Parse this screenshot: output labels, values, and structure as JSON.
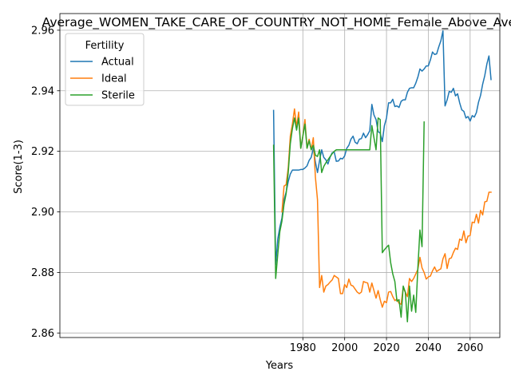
{
  "chart_data": {
    "type": "line",
    "title": "Average_WOMEN_TAKE_CARE_OF_COUNTRY_NOT_HOME_Female_Above_Average",
    "xlabel": "Years",
    "ylabel": "Score(1-3)",
    "xlim": [
      1863.8,
      2074.2
    ],
    "ylim": [
      2.8585,
      2.9655
    ],
    "xticks": [
      1980,
      2000,
      2020,
      2040,
      2060
    ],
    "yticks": [
      2.86,
      2.88,
      2.9,
      2.92,
      2.94,
      2.96
    ],
    "ytick_labels": [
      "2.86",
      "2.88",
      "2.90",
      "2.92",
      "2.94",
      "2.96"
    ],
    "grid": true,
    "legend": {
      "title": "Fertility",
      "placement": "upper-left"
    },
    "series": [
      {
        "name": "Actual",
        "color": "#1f77b4",
        "x": [
          1966,
          1967,
          1968,
          1969,
          1970,
          1971,
          1972,
          1973,
          1974,
          1975,
          1976,
          1977,
          1978,
          1979,
          1980,
          1981,
          1982,
          1983,
          1984,
          1985,
          1986,
          1987,
          1988,
          1989,
          1990,
          1991,
          1992,
          1993,
          1994,
          1995,
          1996,
          1997,
          1998,
          1999,
          2000,
          2001,
          2002,
          2003,
          2004,
          2005,
          2006,
          2007,
          2008,
          2009,
          2010,
          2011,
          2012,
          2013,
          2014,
          2015,
          2016,
          2017,
          2018,
          2019,
          2020,
          2021,
          2022,
          2023,
          2024,
          2025,
          2026,
          2027,
          2028,
          2029,
          2030,
          2031,
          2032,
          2033,
          2034,
          2035,
          2036,
          2037,
          2038,
          2039,
          2040,
          2041,
          2042,
          2043,
          2044,
          2045,
          2046,
          2047,
          2048,
          2049,
          2050,
          2051,
          2052,
          2053,
          2054,
          2055,
          2056,
          2057,
          2058,
          2059,
          2060,
          2061,
          2062,
          2063,
          2064,
          2065,
          2066,
          2067,
          2068,
          2069,
          2070
        ],
        "values": [
          2.9335,
          2.8825,
          2.891,
          2.895,
          2.898,
          2.904,
          2.9065,
          2.91,
          2.9125,
          2.9138,
          2.9138,
          2.9138,
          2.9138,
          2.914,
          2.914,
          2.9145,
          2.9152,
          2.917,
          2.918,
          2.921,
          2.9165,
          2.913,
          2.917,
          2.9205,
          2.918,
          2.9172,
          2.9158,
          2.918,
          2.9195,
          2.9198,
          2.9167,
          2.9168,
          2.9177,
          2.9175,
          2.9185,
          2.921,
          2.922,
          2.924,
          2.925,
          2.923,
          2.9225,
          2.924,
          2.9242,
          2.926,
          2.9245,
          2.9255,
          2.9268,
          2.9355,
          2.932,
          2.9305,
          2.9265,
          2.926,
          2.9232,
          2.9285,
          2.931,
          2.936,
          2.936,
          2.9372,
          2.9348,
          2.935,
          2.9345,
          2.9365,
          2.937,
          2.937,
          2.9395,
          2.9408,
          2.941,
          2.941,
          2.9425,
          2.9445,
          2.9472,
          2.9465,
          2.9472,
          2.9482,
          2.9482,
          2.9502,
          2.9528,
          2.952,
          2.9522,
          2.9545,
          2.9565,
          2.9598,
          2.935,
          2.937,
          2.9398,
          2.9395,
          2.9408,
          2.9383,
          2.939,
          2.936,
          2.9337,
          2.9332,
          2.931,
          2.9315,
          2.93,
          2.9318,
          2.9313,
          2.9328,
          2.9362,
          2.9385,
          2.9422,
          2.945,
          2.9488,
          2.9515,
          2.9437
        ]
      },
      {
        "name": "Ideal",
        "color": "#ff7f0e",
        "x": [
          1970,
          1971,
          1972,
          1973,
          1974,
          1975,
          1976,
          1977,
          1978,
          1979,
          1980,
          1981,
          1982,
          1983,
          1984,
          1985,
          1986,
          1987,
          1988,
          1989,
          1990,
          1991,
          1992,
          1993,
          1994,
          1995,
          1996,
          1997,
          1998,
          1999,
          2000,
          2001,
          2002,
          2003,
          2004,
          2005,
          2006,
          2007,
          2008,
          2009,
          2010,
          2011,
          2012,
          2013,
          2014,
          2015,
          2016,
          2017,
          2018,
          2019,
          2020,
          2021,
          2022,
          2023,
          2024,
          2025,
          2026,
          2027,
          2028,
          2029,
          2030,
          2031,
          2032,
          2033,
          2034,
          2035,
          2036,
          2037,
          2038,
          2039,
          2040,
          2041,
          2042,
          2043,
          2044,
          2045,
          2046,
          2047,
          2048,
          2049,
          2050,
          2051,
          2052,
          2053,
          2054,
          2055,
          2056,
          2057,
          2058,
          2059,
          2060,
          2061,
          2062,
          2063,
          2064,
          2065,
          2066,
          2067,
          2068,
          2069,
          2070
        ],
        "values": [
          2.9,
          2.9085,
          2.909,
          2.9145,
          2.925,
          2.929,
          2.934,
          2.928,
          2.933,
          2.921,
          2.925,
          2.9305,
          2.921,
          2.924,
          2.9205,
          2.9245,
          2.9115,
          2.904,
          2.875,
          2.879,
          2.8735,
          2.8755,
          2.876,
          2.8768,
          2.8775,
          2.879,
          2.8785,
          2.878,
          2.873,
          2.873,
          2.876,
          2.875,
          2.8778,
          2.8758,
          2.8755,
          2.8745,
          2.8735,
          2.873,
          2.8735,
          2.877,
          2.8767,
          2.8765,
          2.8735,
          2.8765,
          2.874,
          2.8715,
          2.874,
          2.871,
          2.8685,
          2.8705,
          2.87,
          2.8735,
          2.8737,
          2.872,
          2.8707,
          2.8712,
          2.8698,
          2.8695,
          2.875,
          2.8735,
          2.872,
          2.878,
          2.877,
          2.878,
          2.8795,
          2.881,
          2.885,
          2.8815,
          2.88,
          2.8778,
          2.8785,
          2.8788,
          2.8805,
          2.8818,
          2.8803,
          2.8808,
          2.8812,
          2.8845,
          2.8862,
          2.8813,
          2.8845,
          2.8848,
          2.8866,
          2.888,
          2.8876,
          2.891,
          2.8906,
          2.8937,
          2.8898,
          2.892,
          2.8922,
          2.8966,
          2.8964,
          2.8992,
          2.8963,
          2.9005,
          2.899,
          2.9033,
          2.9035,
          2.9065,
          2.9065
        ]
      },
      {
        "name": "Sterile",
        "color": "#2ca02c",
        "x": [
          1966,
          1967,
          1968,
          1969,
          1970,
          1971,
          1972,
          1973,
          1974,
          1975,
          1976,
          1977,
          1978,
          1979,
          1980,
          1981,
          1982,
          1983,
          1984,
          1985,
          1986,
          1987,
          1988,
          1989,
          1990,
          1991,
          1992,
          1993,
          1994,
          1995,
          1996,
          1997,
          1998,
          1999,
          2000,
          2001,
          2002,
          2003,
          2004,
          2005,
          2006,
          2007,
          2008,
          2009,
          2010,
          2011,
          2012,
          2013,
          2014,
          2015,
          2016,
          2017,
          2018,
          2019,
          2020,
          2021,
          2022,
          2023,
          2024,
          2025,
          2026,
          2027,
          2028,
          2029,
          2030,
          2031,
          2032,
          2033,
          2034,
          2035,
          2036,
          2037,
          2038
        ],
        "values": [
          2.922,
          2.878,
          2.886,
          2.8935,
          2.897,
          2.9025,
          2.906,
          2.913,
          2.9225,
          2.9275,
          2.931,
          2.927,
          2.931,
          2.921,
          2.925,
          2.929,
          2.921,
          2.9235,
          2.9205,
          2.922,
          2.9187,
          2.9183,
          2.9205,
          2.913,
          2.915,
          2.9162,
          2.9172,
          2.9182,
          2.9192,
          2.92,
          2.9205,
          2.9205,
          2.9205,
          2.9205,
          2.9205,
          2.9205,
          2.9205,
          2.9205,
          2.9205,
          2.9205,
          2.9205,
          2.9205,
          2.9205,
          2.9205,
          2.9205,
          2.9205,
          2.9205,
          2.9285,
          2.9245,
          2.9205,
          2.931,
          2.9305,
          2.8865,
          2.8875,
          2.8883,
          2.889,
          2.8832,
          2.8795,
          2.877,
          2.8705,
          2.871,
          2.8652,
          2.8755,
          2.8735,
          2.8637,
          2.8755,
          2.8672,
          2.8725,
          2.8668,
          2.8815,
          2.894,
          2.8885,
          2.9297
        ]
      }
    ]
  }
}
